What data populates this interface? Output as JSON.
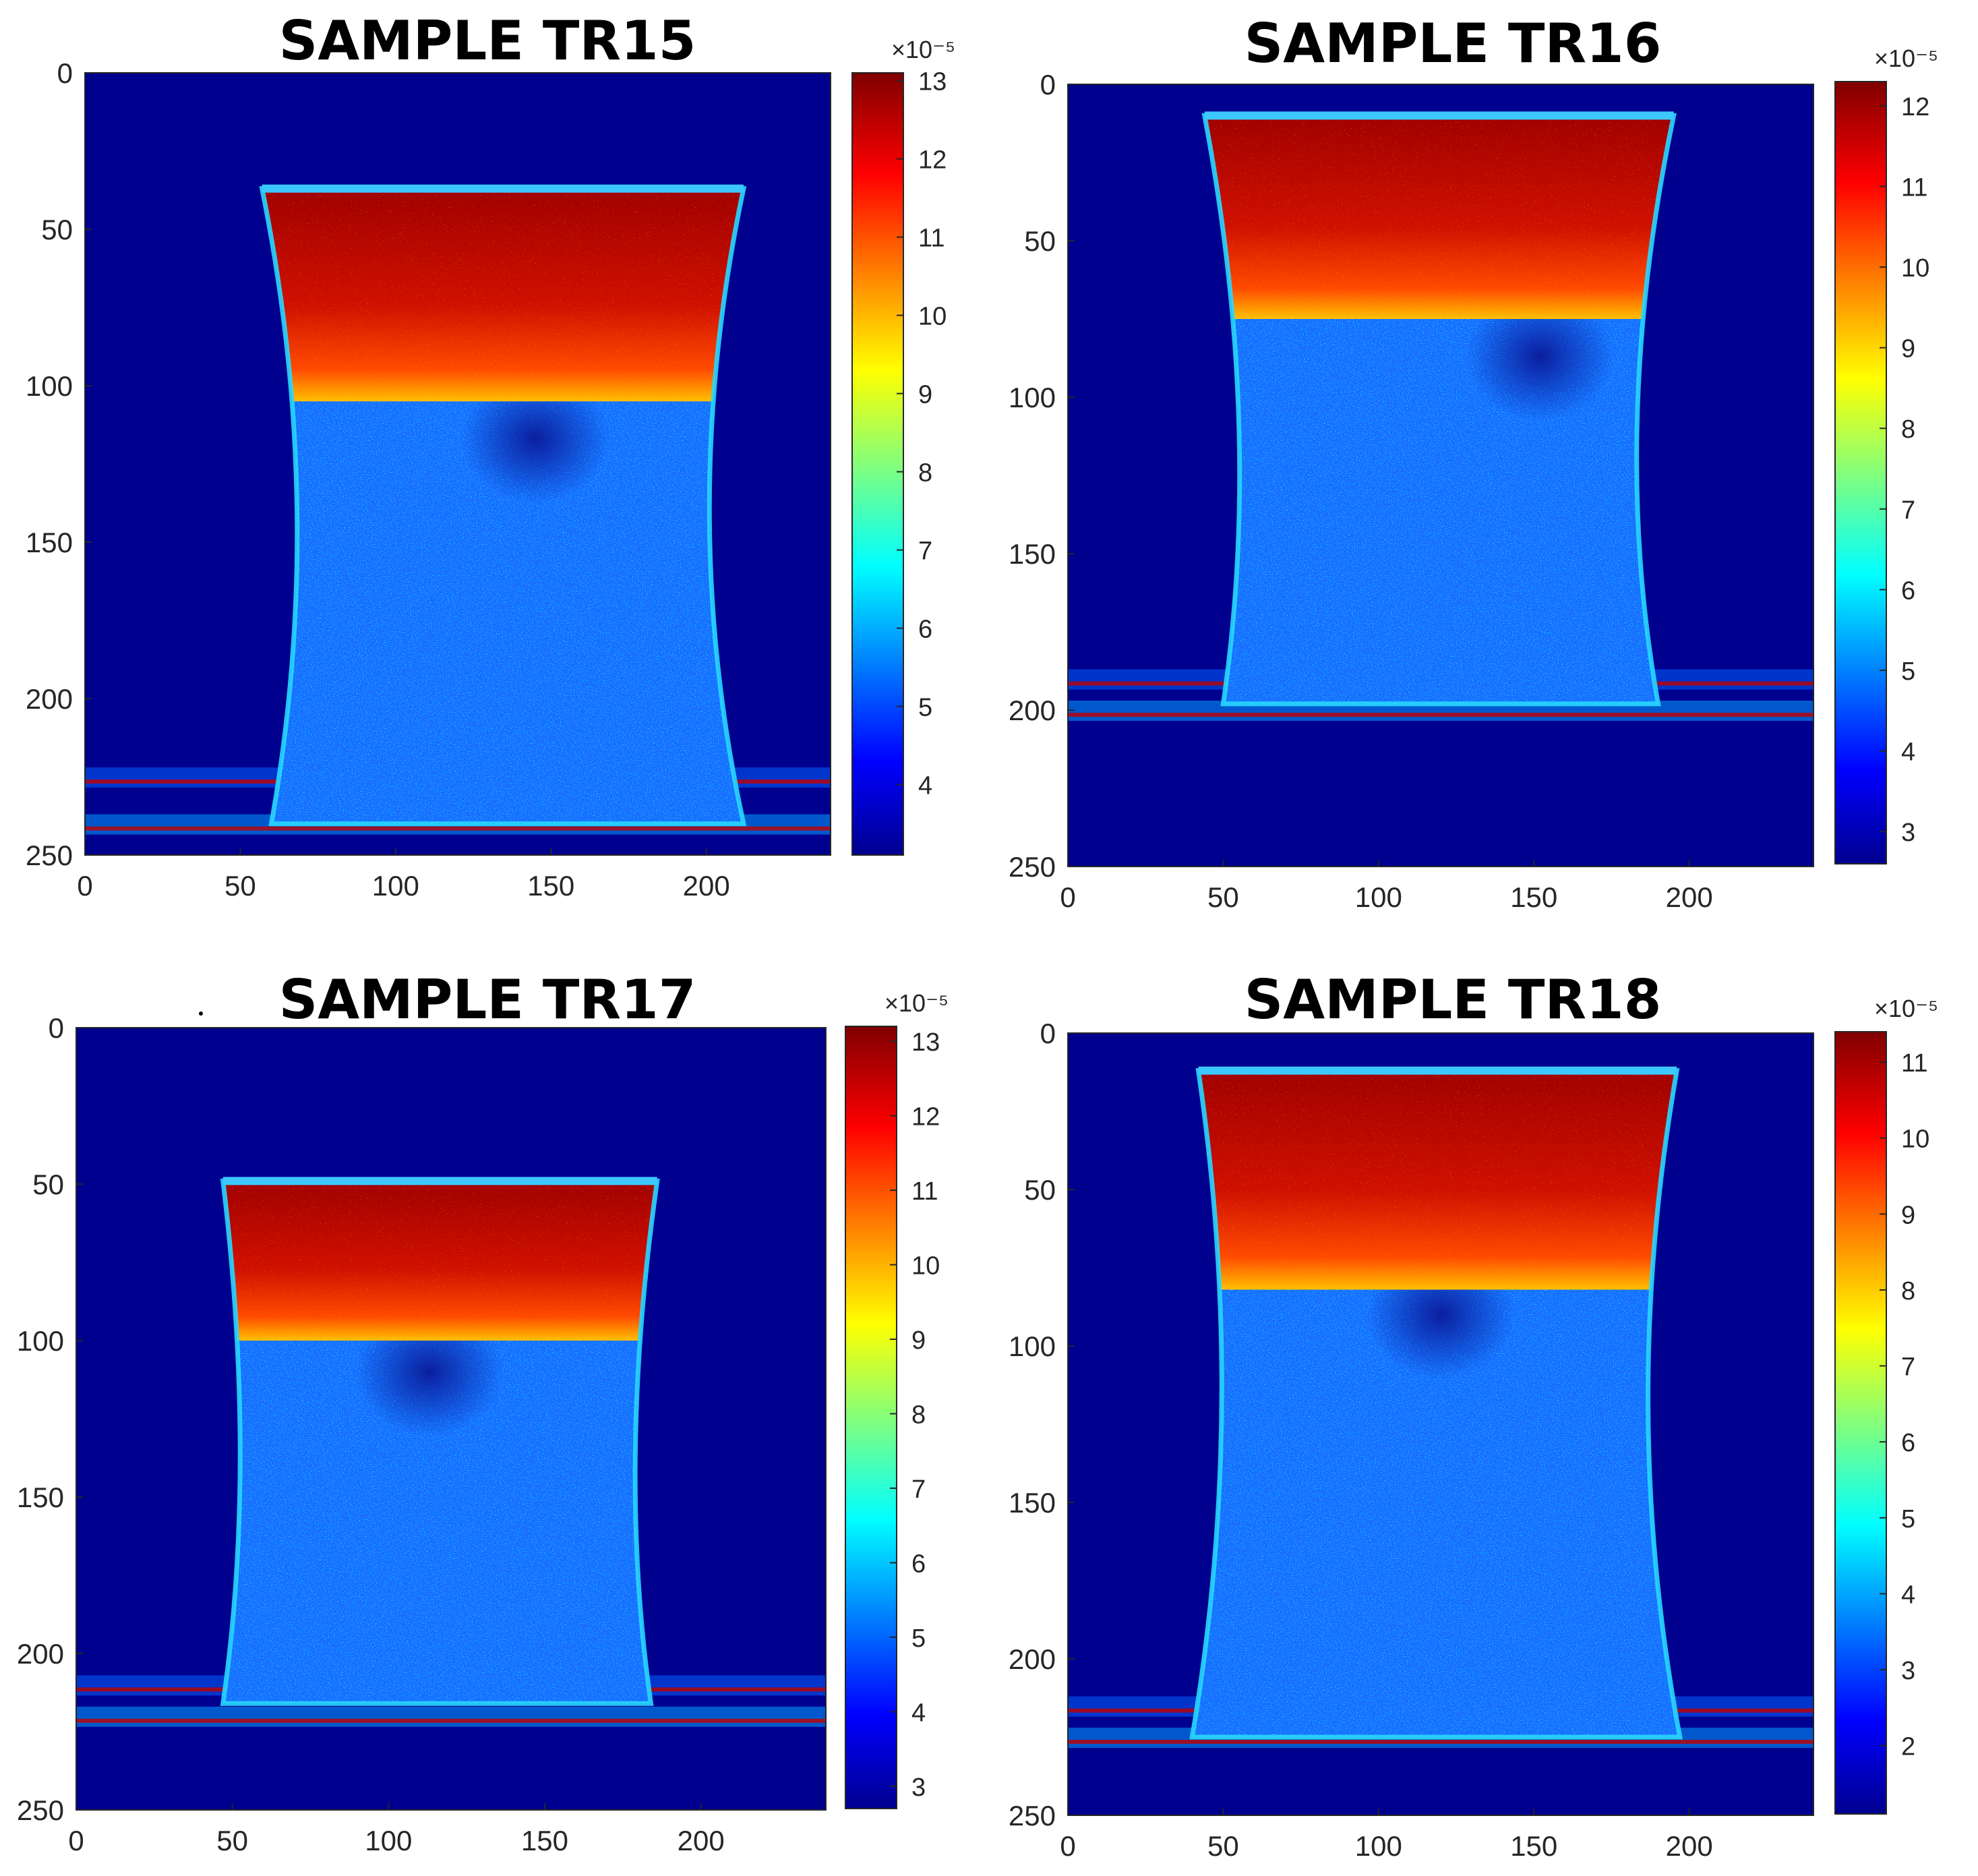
{
  "chart_data": [
    {
      "type": "heatmap",
      "title": "SAMPLE TR15",
      "x_ticks": [
        0,
        50,
        100,
        150,
        200
      ],
      "y_ticks": [
        0,
        50,
        100,
        150,
        200,
        250
      ],
      "xlim": [
        0,
        240
      ],
      "ylim": [
        0,
        250
      ],
      "y_reversed": true,
      "colormap": "jet",
      "colorbar": {
        "multiplier": "×10⁻⁵",
        "range": [
          3.1,
          13.1
        ],
        "ticks": [
          4,
          5,
          6,
          7,
          8,
          9,
          10,
          11,
          12,
          13
        ]
      },
      "specimen": {
        "top_y": 37,
        "bottom_y": 240,
        "top_left_x": 57,
        "top_right_x": 212,
        "waist_left_x": 72,
        "waist_right_x": 196,
        "bottom_left_x": 60,
        "bottom_right_x": 212,
        "waist_y": 140,
        "red_band_to_y": 105,
        "dark_spot": [
          145,
          117
        ]
      },
      "noise_bands_y": [
        225,
        240
      ]
    },
    {
      "type": "heatmap",
      "title": "SAMPLE TR16",
      "x_ticks": [
        0,
        50,
        100,
        150,
        200
      ],
      "y_ticks": [
        0,
        50,
        100,
        150,
        200,
        250
      ],
      "xlim": [
        0,
        240
      ],
      "ylim": [
        0,
        250
      ],
      "y_reversed": true,
      "colormap": "jet",
      "colorbar": {
        "multiplier": "×10⁻⁵",
        "range": [
          2.6,
          12.3
        ],
        "ticks": [
          3,
          4,
          5,
          6,
          7,
          8,
          9,
          10,
          11,
          12
        ]
      },
      "specimen": {
        "top_y": 10,
        "bottom_y": 198,
        "top_left_x": 44,
        "top_right_x": 195,
        "waist_left_x": 57,
        "waist_right_x": 180,
        "bottom_left_x": 50,
        "bottom_right_x": 190,
        "waist_y": 110,
        "red_band_to_y": 75,
        "dark_spot": [
          152,
          87
        ]
      },
      "noise_bands_y": [
        190,
        200
      ]
    },
    {
      "type": "heatmap",
      "title": "SAMPLE TR17",
      "x_ticks": [
        0,
        50,
        100,
        150,
        200
      ],
      "y_ticks": [
        0,
        50,
        100,
        150,
        200,
        250
      ],
      "xlim": [
        0,
        240
      ],
      "ylim": [
        0,
        250
      ],
      "y_reversed": true,
      "colormap": "jet",
      "colorbar": {
        "multiplier": "×10⁻⁵",
        "range": [
          2.7,
          13.2
        ],
        "ticks": [
          3,
          4,
          5,
          6,
          7,
          8,
          9,
          10,
          11,
          12,
          13
        ]
      },
      "specimen": {
        "top_y": 49,
        "bottom_y": 216,
        "top_left_x": 47,
        "top_right_x": 186,
        "waist_left_x": 52,
        "waist_right_x": 179,
        "bottom_left_x": 47,
        "bottom_right_x": 184,
        "waist_y": 140,
        "red_band_to_y": 100,
        "dark_spot": [
          113,
          110
        ]
      },
      "noise_bands_y": [
        210,
        220
      ]
    },
    {
      "type": "heatmap",
      "title": "SAMPLE TR18",
      "x_ticks": [
        0,
        50,
        100,
        150,
        200
      ],
      "y_ticks": [
        0,
        50,
        100,
        150,
        200,
        250
      ],
      "xlim": [
        0,
        240
      ],
      "ylim": [
        0,
        250
      ],
      "y_reversed": true,
      "colormap": "jet",
      "colorbar": {
        "multiplier": "×10⁻⁵",
        "range": [
          1.1,
          11.4
        ],
        "ticks": [
          2,
          3,
          4,
          5,
          6,
          7,
          8,
          9,
          10,
          11
        ]
      },
      "specimen": {
        "top_y": 12,
        "bottom_y": 225,
        "top_left_x": 42,
        "top_right_x": 196,
        "waist_left_x": 52,
        "waist_right_x": 183,
        "bottom_left_x": 40,
        "bottom_right_x": 197,
        "waist_y": 120,
        "red_band_to_y": 82,
        "dark_spot": [
          120,
          90
        ]
      },
      "noise_bands_y": [
        215,
        225
      ]
    }
  ]
}
